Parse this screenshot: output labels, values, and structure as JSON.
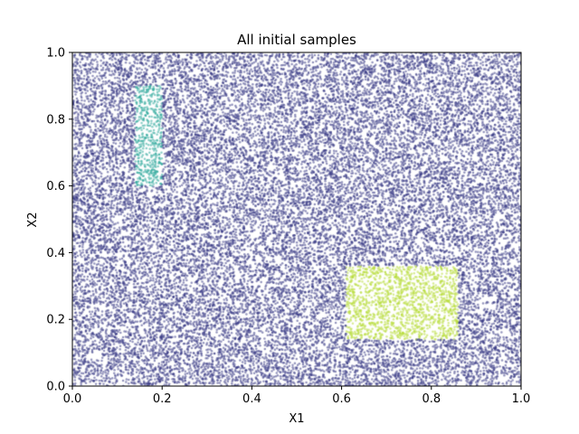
{
  "chart_data": {
    "type": "scatter",
    "title": "All initial samples",
    "xlabel": "X1",
    "ylabel": "X2",
    "xlim": [
      0,
      1
    ],
    "ylim": [
      0,
      1
    ],
    "xticks": [
      "0.0",
      "0.2",
      "0.4",
      "0.6",
      "0.8",
      "1.0"
    ],
    "yticks": [
      "0.0",
      "0.2",
      "0.4",
      "0.6",
      "0.8",
      "1.0"
    ],
    "grid": false,
    "legend": "none",
    "point_style": "dense uniform random samples",
    "regions": [
      {
        "class": "background",
        "color": "#3b3c86",
        "x_range": [
          0,
          1
        ],
        "y_range": [
          0,
          1
        ]
      },
      {
        "class": "region-1",
        "color": "#2ca89b",
        "x_range": [
          0.14,
          0.2
        ],
        "y_range": [
          0.6,
          0.9
        ]
      },
      {
        "class": "region-2",
        "color": "#b8dc3a",
        "x_range": [
          0.61,
          0.86
        ],
        "y_range": [
          0.14,
          0.36
        ]
      }
    ]
  }
}
